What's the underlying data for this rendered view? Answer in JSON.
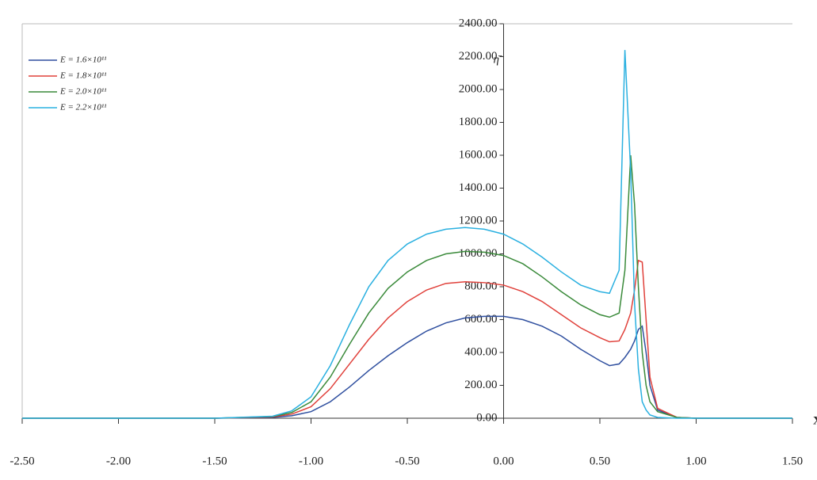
{
  "chart_data": {
    "type": "line",
    "y_label": "η̄",
    "x_label": "X",
    "x": [
      -2.5,
      -1.5,
      -1.2,
      -1.1,
      -1.0,
      -0.9,
      -0.8,
      -0.7,
      -0.6,
      -0.5,
      -0.4,
      -0.3,
      -0.2,
      -0.1,
      0,
      0.1,
      0.2,
      0.3,
      0.4,
      0.5,
      0.55,
      0.6,
      0.63,
      0.66,
      0.68,
      0.7,
      0.72,
      0.74,
      0.76,
      0.8,
      0.9,
      1.0,
      1.5
    ],
    "series": [
      {
        "name": "E = 1.6×10¹¹",
        "color": "#2f4f9f",
        "values": [
          0,
          0,
          5,
          15,
          40,
          100,
          190,
          290,
          380,
          460,
          530,
          580,
          610,
          620,
          620,
          600,
          560,
          500,
          420,
          350,
          320,
          330,
          370,
          420,
          470,
          540,
          560,
          400,
          200,
          50,
          5,
          0,
          0
        ]
      },
      {
        "name": "E = 1.8×10¹¹",
        "color": "#e0403a",
        "values": [
          0,
          0,
          8,
          25,
          70,
          180,
          330,
          480,
          610,
          710,
          780,
          820,
          830,
          825,
          810,
          770,
          710,
          630,
          550,
          490,
          465,
          470,
          540,
          640,
          780,
          960,
          950,
          600,
          250,
          60,
          5,
          0,
          0
        ]
      },
      {
        "name": "E = 2.0×10¹¹",
        "color": "#3a8a3a",
        "values": [
          0,
          0,
          10,
          35,
          100,
          250,
          450,
          640,
          790,
          890,
          960,
          1000,
          1015,
          1010,
          990,
          940,
          860,
          770,
          690,
          630,
          615,
          640,
          900,
          1600,
          1300,
          800,
          400,
          200,
          100,
          40,
          5,
          0,
          0
        ]
      },
      {
        "name": "E = 2.2×10¹¹",
        "color": "#2ab0e0",
        "values": [
          0,
          0,
          12,
          45,
          130,
          320,
          570,
          800,
          960,
          1060,
          1120,
          1150,
          1160,
          1150,
          1120,
          1060,
          980,
          890,
          810,
          770,
          760,
          900,
          2240,
          1500,
          700,
          300,
          100,
          50,
          20,
          5,
          0,
          0,
          0
        ]
      }
    ],
    "xlim": [
      -2.5,
      1.5
    ],
    "xticks": [
      {
        "value": -2.5,
        "label": "-2.50"
      },
      {
        "value": -2,
        "label": "-2.00"
      },
      {
        "value": -1.5,
        "label": "-1.50"
      },
      {
        "value": -1,
        "label": "-1.00"
      },
      {
        "value": -0.5,
        "label": "-0.50"
      },
      {
        "value": 0,
        "label": "0.00"
      },
      {
        "value": 0.5,
        "label": "0.50"
      },
      {
        "value": 1,
        "label": "1.00"
      },
      {
        "value": 1.5,
        "label": "1.50"
      }
    ],
    "ylim": [
      0,
      2400
    ],
    "yticks": [
      {
        "value": 0,
        "label": "0.00"
      },
      {
        "value": 200,
        "label": "200.00"
      },
      {
        "value": 400,
        "label": "400.00"
      },
      {
        "value": 600,
        "label": "600.00"
      },
      {
        "value": 800,
        "label": "800.00"
      },
      {
        "value": 1000,
        "label": "1000.00"
      },
      {
        "value": 1200,
        "label": "1200.00"
      },
      {
        "value": 1400,
        "label": "1400.00"
      },
      {
        "value": 1600,
        "label": "1600.00"
      },
      {
        "value": 1800,
        "label": "1800.00"
      },
      {
        "value": 2000,
        "label": "2000.00"
      },
      {
        "value": 2200,
        "label": "2200.00"
      },
      {
        "value": 2400,
        "label": "2400.00"
      }
    ],
    "legend": "upper left"
  }
}
